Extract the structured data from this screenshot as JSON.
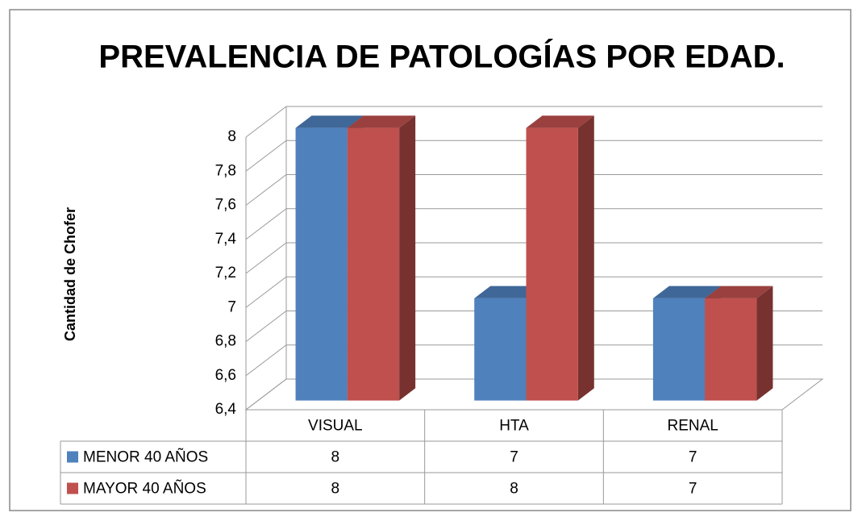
{
  "chart_data": {
    "type": "bar3d",
    "title": "PREVALENCIA DE PATOLOGÍAS  POR EDAD.",
    "ylabel": "Cantidad de Chofer",
    "categories": [
      "VISUAL",
      "HTA",
      "RENAL"
    ],
    "series": [
      {
        "name": "MENOR 40 AÑOS",
        "color": "#4f81bd",
        "values": [
          8,
          7,
          7
        ]
      },
      {
        "name": "MAYOR 40 AÑOS",
        "color": "#c0504d",
        "values": [
          8,
          8,
          7
        ]
      }
    ],
    "ylim": [
      6.4,
      8
    ],
    "yticks": [
      {
        "value": 6.4,
        "label": "6,4"
      },
      {
        "value": 6.6,
        "label": "6,6"
      },
      {
        "value": 6.8,
        "label": "6,8"
      },
      7,
      {
        "value": 7.2,
        "label": "7,2"
      },
      {
        "value": 7.4,
        "label": "7,4"
      },
      {
        "value": 7.6,
        "label": "7,6"
      },
      {
        "value": 7.8,
        "label": "7,8"
      },
      8
    ],
    "grid": true,
    "data_table": true
  }
}
